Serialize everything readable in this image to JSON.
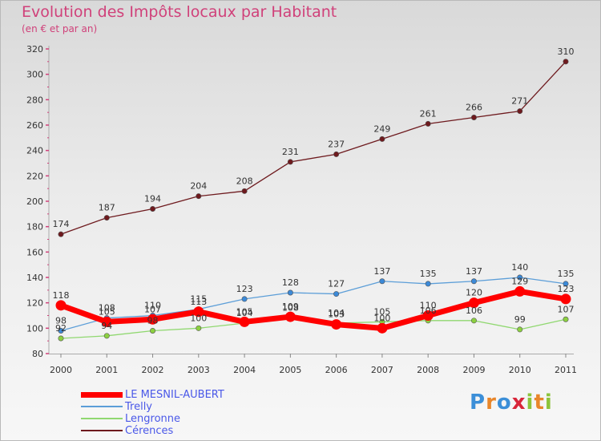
{
  "title": "Evolution des Impôts locaux par Habitant",
  "subtitle": "(en € et par an)",
  "brand": {
    "letters": [
      {
        "ch": "P",
        "color": "#3c8fd8"
      },
      {
        "ch": "r",
        "color": "#e8862a"
      },
      {
        "ch": "o",
        "color": "#3c8fd8"
      },
      {
        "ch": "x",
        "color": "#d8263a"
      },
      {
        "ch": "i",
        "color": "#8cc43a"
      },
      {
        "ch": "t",
        "color": "#e8862a"
      },
      {
        "ch": "i",
        "color": "#8cc43a"
      }
    ]
  },
  "chart_data": {
    "type": "line",
    "x": [
      "2000",
      "2001",
      "2002",
      "2003",
      "2004",
      "2005",
      "2006",
      "2007",
      "2008",
      "2009",
      "2010",
      "2011"
    ],
    "ylim": [
      80,
      320
    ],
    "yticks": [
      80,
      100,
      120,
      140,
      160,
      180,
      200,
      220,
      240,
      260,
      280,
      300,
      320
    ],
    "grid": false,
    "legend_position": "bottom-left",
    "series": [
      {
        "name": "Cérences",
        "color": "#6e1a1e",
        "marker": "#6e1a1e",
        "values": [
          174,
          187,
          194,
          204,
          208,
          231,
          237,
          249,
          261,
          266,
          271,
          310
        ]
      },
      {
        "name": "Lengronne",
        "color": "#90d870",
        "marker": "#8cd040",
        "values": [
          92,
          94,
          98,
          100,
          104,
          108,
          104,
          105,
          106,
          106,
          99,
          107
        ]
      },
      {
        "name": "Trelly",
        "color": "#5c9ed8",
        "marker": "#3c8ad8",
        "values": [
          98,
          108,
          110,
          115,
          123,
          128,
          127,
          137,
          135,
          137,
          140,
          135
        ]
      },
      {
        "name": "LE MESNIL-AUBERT",
        "color": "#ff0000",
        "marker": "#ff0000",
        "values": [
          118,
          105,
          107,
          113,
          105,
          109,
          103,
          100,
          110,
          120,
          129,
          123
        ]
      }
    ]
  },
  "legend": [
    {
      "name": "LE MESNIL-AUBERT",
      "color": "#ff0000",
      "thickness": 7
    },
    {
      "name": "Trelly",
      "color": "#5c9ed8",
      "thickness": 2
    },
    {
      "name": "Lengronne",
      "color": "#90d870",
      "thickness": 2
    },
    {
      "name": "Cérences",
      "color": "#6e1a1e",
      "thickness": 2
    }
  ]
}
